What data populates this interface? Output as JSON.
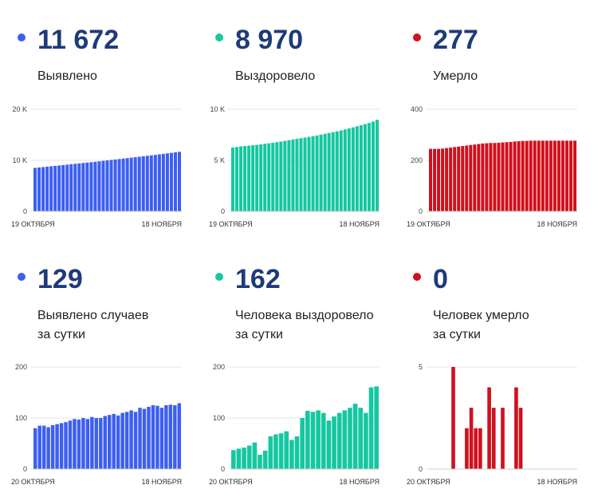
{
  "panels": [
    {
      "value": "11 672",
      "label_lines": [
        "Выявлено"
      ],
      "color": "#3d5ff0",
      "chart_data": {
        "type": "bar",
        "yticks": [
          {
            "v": 0,
            "t": "0"
          },
          {
            "v": 10000,
            "t": "10 K"
          },
          {
            "v": 20000,
            "t": "20 K"
          }
        ],
        "ylim": [
          0,
          20000
        ],
        "xlabels": [
          "19 ОКТЯБРЯ",
          "18 НОЯБРЯ"
        ],
        "values": [
          8520,
          8600,
          8680,
          8760,
          8840,
          8920,
          9000,
          9080,
          9160,
          9240,
          9320,
          9400,
          9480,
          9560,
          9640,
          9720,
          9810,
          9900,
          9990,
          10080,
          10170,
          10260,
          10350,
          10440,
          10530,
          10620,
          10710,
          10800,
          10890,
          10980,
          11070,
          11170,
          11270,
          11370,
          11470,
          11570,
          11672
        ]
      }
    },
    {
      "value": "8 970",
      "label_lines": [
        "Выздоровело"
      ],
      "color": "#16c7a0",
      "chart_data": {
        "type": "bar",
        "yticks": [
          {
            "v": 0,
            "t": "0"
          },
          {
            "v": 5000,
            "t": "5 K"
          },
          {
            "v": 10000,
            "t": "10 K"
          }
        ],
        "ylim": [
          0,
          10000
        ],
        "xlabels": [
          "19 ОКТЯБРЯ",
          "18 НОЯБРЯ"
        ],
        "values": [
          6250,
          6310,
          6360,
          6400,
          6440,
          6480,
          6520,
          6570,
          6620,
          6670,
          6720,
          6780,
          6840,
          6910,
          6980,
          7050,
          7110,
          7170,
          7230,
          7300,
          7370,
          7440,
          7520,
          7600,
          7680,
          7760,
          7840,
          7930,
          8030,
          8130,
          8230,
          8340,
          8440,
          8550,
          8660,
          8800,
          8970
        ]
      }
    },
    {
      "value": "277",
      "label_lines": [
        "Умерло"
      ],
      "color": "#d0101e",
      "chart_data": {
        "type": "bar",
        "yticks": [
          {
            "v": 0,
            "t": "0"
          },
          {
            "v": 200,
            "t": "200"
          },
          {
            "v": 400,
            "t": "400"
          }
        ],
        "ylim": [
          0,
          400
        ],
        "xlabels": [
          "19 ОКТЯБРЯ",
          "18 НОЯБРЯ"
        ],
        "values": [
          245,
          245,
          245,
          246,
          248,
          250,
          252,
          254,
          256,
          258,
          260,
          262,
          264,
          266,
          267,
          268,
          268,
          269,
          270,
          271,
          272,
          274,
          275,
          276,
          276,
          277,
          277,
          277,
          277,
          277,
          277,
          277,
          277,
          277,
          277,
          277,
          277
        ]
      }
    },
    {
      "value": "129",
      "label_lines": [
        "Выявлено случаев",
        "за сутки"
      ],
      "color": "#3d5ff0",
      "chart_data": {
        "type": "bar",
        "yticks": [
          {
            "v": 0,
            "t": "0"
          },
          {
            "v": 100,
            "t": "100"
          },
          {
            "v": 200,
            "t": "200"
          }
        ],
        "ylim": [
          0,
          200
        ],
        "xlabels": [
          "20 ОКТЯБРЯ",
          "18 НОЯБРЯ"
        ],
        "values": [
          80,
          85,
          85,
          82,
          86,
          88,
          90,
          92,
          95,
          98,
          97,
          100,
          98,
          102,
          100,
          100,
          104,
          106,
          108,
          105,
          110,
          112,
          115,
          112,
          120,
          118,
          122,
          125,
          124,
          120,
          125,
          126,
          125,
          129
        ]
      }
    },
    {
      "value": "162",
      "label_lines": [
        "Человека выздоровело",
        "за сутки"
      ],
      "color": "#16c7a0",
      "chart_data": {
        "type": "bar",
        "yticks": [
          {
            "v": 0,
            "t": "0"
          },
          {
            "v": 100,
            "t": "100"
          },
          {
            "v": 200,
            "t": "200"
          }
        ],
        "ylim": [
          0,
          200
        ],
        "xlabels": [
          "20 ОКТЯБРЯ",
          "18 НОЯБРЯ"
        ],
        "values": [
          37,
          40,
          42,
          46,
          52,
          28,
          36,
          64,
          68,
          70,
          74,
          57,
          64,
          100,
          114,
          112,
          115,
          110,
          95,
          103,
          110,
          115,
          120,
          128,
          120,
          110,
          160,
          162
        ]
      }
    },
    {
      "value": "0",
      "label_lines": [
        "Человек умерло",
        "за сутки"
      ],
      "color": "#d0101e",
      "chart_data": {
        "type": "bar",
        "yticks": [
          {
            "v": 0,
            "t": "0"
          },
          {
            "v": 5,
            "t": "5"
          }
        ],
        "ylim": [
          0,
          5
        ],
        "xlabels": [
          "20 ОКТЯБРЯ",
          "18 НОЯБРЯ"
        ],
        "values": [
          0,
          0,
          0,
          0,
          0,
          5,
          0,
          0,
          2,
          3,
          2,
          2,
          0,
          4,
          3,
          0,
          3,
          0,
          0,
          4,
          3,
          0,
          0,
          0,
          0,
          0,
          0,
          0,
          0,
          0,
          0,
          0,
          0
        ]
      }
    }
  ]
}
